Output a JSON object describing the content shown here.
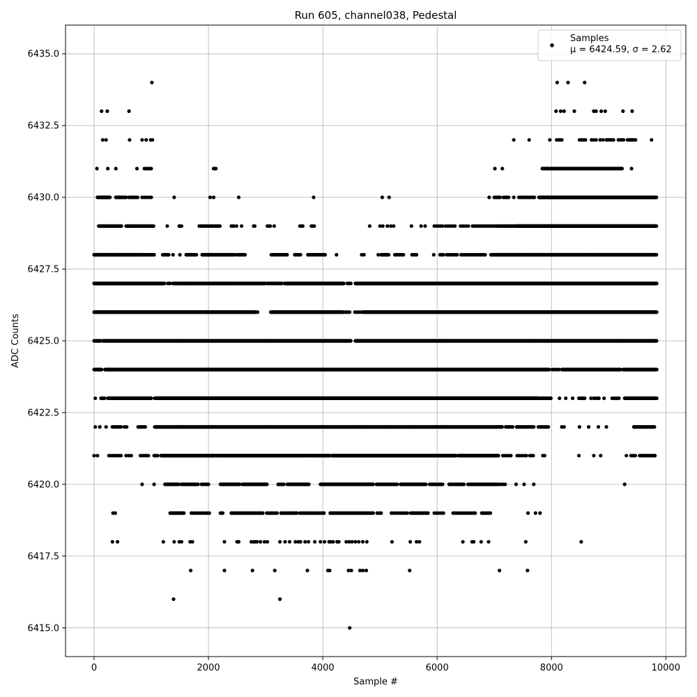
{
  "chart_data": {
    "type": "scatter",
    "title": "Run 605, channel038, Pedestal",
    "xlabel": "Sample #",
    "ylabel": "ADC Counts",
    "xlim": [
      -500,
      10350
    ],
    "ylim": [
      6414,
      6436
    ],
    "xticks": [
      "0",
      "2000",
      "4000",
      "6000",
      "8000",
      "10000"
    ],
    "xtick_values": [
      0,
      2000,
      4000,
      6000,
      8000,
      10000
    ],
    "yticks": [
      "6415.0",
      "6417.5",
      "6420.0",
      "6422.5",
      "6425.0",
      "6427.5",
      "6430.0",
      "6432.5",
      "6435.0"
    ],
    "ytick_values": [
      6415.0,
      6417.5,
      6420.0,
      6422.5,
      6425.0,
      6427.5,
      6430.0,
      6432.5,
      6435.0
    ],
    "grid": true,
    "marker_color": "#000000",
    "legend": {
      "placement": "top-right",
      "label": "Samples",
      "stats": "μ = 6424.59, σ = 2.62"
    },
    "series": [
      {
        "name": "Samples",
        "bands": [
          {
            "y": 6415,
            "x": [
              4470
            ]
          },
          {
            "y": 6416,
            "x": [
              1390,
              3250
            ]
          },
          {
            "y": 6417,
            "x": [
              1690,
              2280,
              2770,
              3160,
              3730,
              4090,
              4120,
              4450,
              4500,
              4650,
              4700,
              4760,
              5520,
              7090,
              7580
            ]
          },
          {
            "y": 6418,
            "x": [
              320,
              410,
              1210,
              1400,
              1490,
              1530,
              1680,
              1720,
              2280,
              2500,
              2530,
              2750,
              2790,
              2820,
              2850,
              2910,
              2980,
              3030,
              3250,
              3340,
              3420,
              3520,
              3570,
              3610,
              3690,
              3750,
              3860,
              3960,
              4030,
              4110,
              4140,
              4180,
              4250,
              4280,
              4410,
              4460,
              4510,
              4570,
              4630,
              4700,
              4770,
              5210,
              5530,
              5640,
              5690,
              6450,
              6610,
              6640,
              6770,
              6900,
              7550,
              8520
            ]
          },
          {
            "y": 6419,
            "x": [
              330,
              370
            ],
            "ranges": [
              [
                1330,
                1580,
                20
              ],
              [
                1700,
                2020,
                35
              ],
              [
                2210,
                2250,
                20
              ],
              [
                2400,
                2960,
                25
              ],
              [
                3020,
                3200,
                30
              ],
              [
                3270,
                3560,
                25
              ],
              [
                3600,
                4040,
                30
              ],
              [
                4130,
                4880,
                25
              ],
              [
                4950,
                5020,
                35
              ],
              [
                5200,
                5480,
                40
              ],
              [
                5540,
                5860,
                25
              ],
              [
                5950,
                6120,
                40
              ],
              [
                6280,
                6690,
                35
              ],
              [
                6780,
                6950,
                30
              ]
            ],
            "extra": [
              7590,
              7720,
              7800
            ]
          },
          {
            "y": 6420,
            "x": [
              840,
              1050,
              7380,
              7520,
              7690,
              9280
            ],
            "ranges": [
              [
                1240,
                1480,
                15
              ],
              [
                1530,
                1830,
                18
              ],
              [
                1880,
                2020,
                30
              ],
              [
                2210,
                2550,
                15
              ],
              [
                2590,
                3030,
                12
              ],
              [
                3220,
                3330,
                20
              ],
              [
                3380,
                3760,
                15
              ],
              [
                3960,
                4880,
                10
              ],
              [
                4940,
                5310,
                20
              ],
              [
                5360,
                5810,
                12
              ],
              [
                5870,
                6100,
                25
              ],
              [
                6210,
                6480,
                20
              ],
              [
                6540,
                7080,
                22
              ],
              [
                7110,
                7220,
                40
              ]
            ]
          },
          {
            "y": 6421,
            "x": [
              0,
              60,
              8480,
              8740,
              8860,
              9310
            ],
            "ranges": [
              [
                260,
                480,
                30
              ],
              [
                560,
                690,
                45
              ],
              [
                810,
                980,
                35
              ],
              [
                1050,
                1120,
                20
              ],
              [
                1170,
                2120,
                8
              ],
              [
                2140,
                3760,
                9
              ],
              [
                3780,
                4120,
                10
              ],
              [
                4160,
                6330,
                7
              ],
              [
                6370,
                7080,
                9
              ],
              [
                7150,
                7300,
                35
              ],
              [
                7400,
                7560,
                40
              ],
              [
                7620,
                7690,
                30
              ],
              [
                7850,
                7890,
                30
              ],
              [
                9390,
                9480,
                25
              ],
              [
                9540,
                9810,
                18
              ]
            ]
          },
          {
            "y": 6422,
            "x": [
              20,
              100,
              210,
              8180,
              8220,
              8490,
              8650,
              8820,
              8960
            ],
            "ranges": [
              [
                320,
                470,
                25
              ],
              [
                530,
                580,
                40
              ],
              [
                770,
                900,
                25
              ],
              [
                1060,
                7140,
                7
              ],
              [
                7200,
                7330,
                20
              ],
              [
                7390,
                7700,
                15
              ],
              [
                7770,
                7960,
                25
              ],
              [
                9440,
                9800,
                10
              ]
            ]
          },
          {
            "y": 6423,
            "x": [
              20,
              180,
              8140,
              8250,
              8370,
              8690,
              8920
            ],
            "ranges": [
              [
                120,
                160,
                20
              ],
              [
                240,
                1000,
                8
              ],
              [
                1060,
                7780,
                5
              ],
              [
                7810,
                7990,
                12
              ],
              [
                8480,
                8590,
                20
              ],
              [
                8740,
                8840,
                30
              ],
              [
                9060,
                9190,
                30
              ],
              [
                9280,
                9840,
                8
              ]
            ]
          },
          {
            "y": 6424,
            "x": [],
            "ranges": [
              [
                0,
                130,
                5
              ],
              [
                190,
                7960,
                4
              ],
              [
                8010,
                8140,
                20
              ],
              [
                8180,
                9210,
                6
              ],
              [
                9250,
                9840,
                5
              ]
            ]
          },
          {
            "y": 6425,
            "x": [],
            "ranges": [
              [
                0,
                110,
                5
              ],
              [
                150,
                4490,
                4
              ],
              [
                4570,
                9840,
                4
              ]
            ]
          },
          {
            "y": 6426,
            "x": [],
            "ranges": [
              [
                0,
                2820,
                4
              ],
              [
                2850,
                2860,
                10
              ],
              [
                3090,
                4360,
                4
              ],
              [
                4390,
                4470,
                20
              ],
              [
                4560,
                4660,
                20
              ],
              [
                4700,
                9840,
                4
              ]
            ]
          },
          {
            "y": 6427,
            "x": [
              1080,
              4490
            ],
            "ranges": [
              [
                0,
                1230,
                5
              ],
              [
                1290,
                1330,
                20
              ],
              [
                1380,
                2990,
                7
              ],
              [
                3030,
                3290,
                12
              ],
              [
                3330,
                4370,
                6
              ],
              [
                4430,
                4460,
                15
              ],
              [
                4570,
                9840,
                5
              ]
            ]
          },
          {
            "y": 6428,
            "x": [
              1050,
              1240,
              1380,
              1500,
              1660,
              1790,
              4040,
              4240,
              4680,
              4720,
              4970,
              5280,
              5640,
              5940
            ],
            "ranges": [
              [
                0,
                870,
                8
              ],
              [
                890,
                1050,
                15
              ],
              [
                1200,
                1310,
                15
              ],
              [
                1610,
                1760,
                15
              ],
              [
                1890,
                2450,
                10
              ],
              [
                2490,
                2640,
                25
              ],
              [
                3100,
                3390,
                25
              ],
              [
                3510,
                3620,
                25
              ],
              [
                3740,
                4050,
                25
              ],
              [
                5020,
                5160,
                12
              ],
              [
                5260,
                5420,
                30
              ],
              [
                5560,
                5620,
                30
              ],
              [
                6050,
                6120,
                20
              ],
              [
                6170,
                6360,
                30
              ],
              [
                6420,
                6850,
                30
              ],
              [
                6940,
                9840,
                8
              ]
            ]
          },
          {
            "y": 6429,
            "x": [
              630,
              1280,
              2490,
              2580,
              3150,
              4820,
              5000,
              5050,
              5130,
              5190,
              5240,
              5550,
              5720,
              5790,
              5950
            ],
            "ranges": [
              [
                80,
                480,
                12
              ],
              [
                560,
                1050,
                12
              ],
              [
                1490,
                1540,
                20
              ],
              [
                1840,
                2210,
                20
              ],
              [
                2400,
                2440,
                20
              ],
              [
                2790,
                2820,
                20
              ],
              [
                3030,
                3090,
                25
              ],
              [
                3600,
                3650,
                25
              ],
              [
                3800,
                3860,
                25
              ],
              [
                5990,
                6100,
                35
              ],
              [
                6150,
                6310,
                40
              ],
              [
                6410,
                6550,
                45
              ],
              [
                6620,
                7060,
                30
              ],
              [
                7060,
                7350,
                15
              ],
              [
                7370,
                9840,
                6
              ]
            ]
          },
          {
            "y": 6430,
            "x": [
              1400,
              2030,
              2090,
              2530,
              3840,
              5040,
              5160,
              6910,
              7340
            ],
            "ranges": [
              [
                60,
                280,
                12
              ],
              [
                380,
                560,
                20
              ],
              [
                610,
                780,
                25
              ],
              [
                840,
                1020,
                40
              ],
              [
                7000,
                7100,
                25
              ],
              [
                7160,
                7250,
                30
              ],
              [
                7430,
                7700,
                30
              ],
              [
                7780,
                9840,
                8
              ]
            ]
          },
          {
            "y": 6431,
            "x": [
              50,
              240,
              380,
              750,
              7010,
              7140,
              9400
            ],
            "ranges": [
              [
                880,
                1000,
                30
              ],
              [
                2090,
                2130,
                20
              ],
              [
                7840,
                9240,
                15
              ]
            ]
          },
          {
            "y": 6432,
            "x": [
              150,
              210,
              620,
              840,
              910,
              990,
              1020,
              7340,
              7610,
              7970,
              9750
            ],
            "ranges": [
              [
                8090,
                8190,
                30
              ],
              [
                8490,
                8600,
                35
              ],
              [
                8700,
                8790,
                40
              ],
              [
                8850,
                8920,
                50
              ],
              [
                8960,
                9090,
                25
              ],
              [
                9170,
                9280,
                30
              ],
              [
                9330,
                9480,
                20
              ]
            ]
          },
          {
            "y": 6433,
            "x": [
              130,
              230,
              610,
              8080,
              8160,
              8220,
              8400,
              8740,
              8780,
              8870,
              8940,
              9250,
              9410
            ]
          },
          {
            "y": 6434,
            "x": [
              1010,
              8100,
              8290,
              8580
            ]
          }
        ]
      }
    ]
  }
}
